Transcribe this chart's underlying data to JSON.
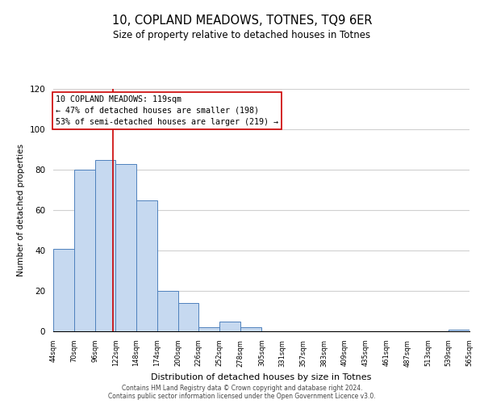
{
  "title": "10, COPLAND MEADOWS, TOTNES, TQ9 6ER",
  "subtitle": "Size of property relative to detached houses in Totnes",
  "xlabel": "Distribution of detached houses by size in Totnes",
  "ylabel": "Number of detached properties",
  "bar_color": "#c6d9f0",
  "bar_edge_color": "#4f81bd",
  "vline_color": "#cc0000",
  "vline_x": 119,
  "bin_edges": [
    44,
    70,
    96,
    122,
    148,
    174,
    200,
    226,
    252,
    278,
    305,
    331,
    357,
    383,
    409,
    435,
    461,
    487,
    513,
    539,
    565
  ],
  "bar_heights": [
    41,
    80,
    85,
    83,
    65,
    20,
    14,
    2,
    5,
    2,
    0,
    0,
    0,
    0,
    0,
    0,
    0,
    0,
    0,
    1
  ],
  "tick_labels": [
    "44sqm",
    "70sqm",
    "96sqm",
    "122sqm",
    "148sqm",
    "174sqm",
    "200sqm",
    "226sqm",
    "252sqm",
    "278sqm",
    "305sqm",
    "331sqm",
    "357sqm",
    "383sqm",
    "409sqm",
    "435sqm",
    "461sqm",
    "487sqm",
    "513sqm",
    "539sqm",
    "565sqm"
  ],
  "annotation_title": "10 COPLAND MEADOWS: 119sqm",
  "annotation_line1": "← 47% of detached houses are smaller (198)",
  "annotation_line2": "53% of semi-detached houses are larger (219) →",
  "annotation_box_color": "#ffffff",
  "annotation_box_edge": "#cc0000",
  "ylim": [
    0,
    120
  ],
  "yticks": [
    0,
    20,
    40,
    60,
    80,
    100,
    120
  ],
  "footer1": "Contains HM Land Registry data © Crown copyright and database right 2024.",
  "footer2": "Contains public sector information licensed under the Open Government Licence v3.0.",
  "background_color": "#ffffff",
  "grid_color": "#d0d0d0"
}
